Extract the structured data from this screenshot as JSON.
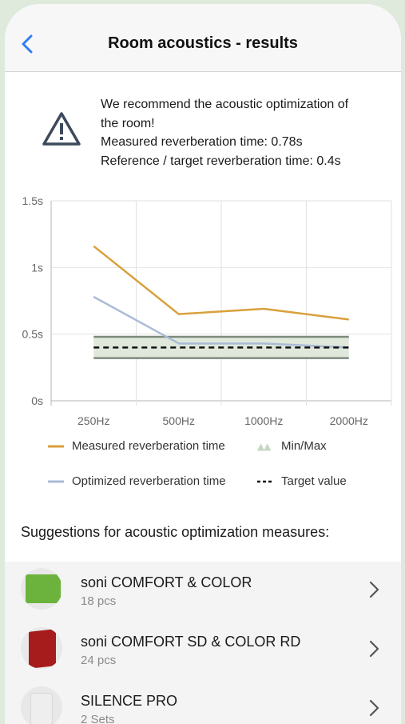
{
  "header": {
    "title": "Room acoustics - results",
    "back_icon": "chevron-left-icon"
  },
  "warning": {
    "icon": "warning-triangle-icon",
    "line1": "We recommend the acoustic optimization of",
    "line2": "the room!",
    "line3": "Measured reverberation time: 0.78s",
    "line4": "Reference / target reverberation time: 0.4s"
  },
  "chart_data": {
    "type": "line",
    "categories": [
      "250Hz",
      "500Hz",
      "1000Hz",
      "2000Hz"
    ],
    "y_ticks": [
      "0s",
      "0.5s",
      "1s",
      "1.5s"
    ],
    "ylim": [
      0,
      1.5
    ],
    "grid": true,
    "series": [
      {
        "name": "Measured reverberation time",
        "color": "#d9a03b",
        "values": [
          1.16,
          0.65,
          0.69,
          0.61
        ]
      },
      {
        "name": "Optimized reverberation time",
        "color": "#a9bcd6",
        "values": [
          0.78,
          0.43,
          0.43,
          0.4
        ]
      }
    ],
    "min_max": {
      "name": "Min/Max",
      "min": 0.32,
      "max": 0.48,
      "color": "#dfe8db"
    },
    "target": {
      "name": "Target value",
      "value": 0.4
    }
  },
  "suggestions": {
    "title": "Suggestions for acoustic optimization measures:",
    "items": [
      {
        "name": "soni COMFORT & COLOR",
        "qty": "18 pcs",
        "thumb_color": "#6cb33e"
      },
      {
        "name": "soni COMFORT SD & COLOR RD",
        "qty": "24 pcs",
        "thumb_color": "#a61c1c"
      },
      {
        "name": "SILENCE PRO",
        "qty": "2 Sets",
        "thumb_color": "#eeeeee"
      }
    ]
  }
}
